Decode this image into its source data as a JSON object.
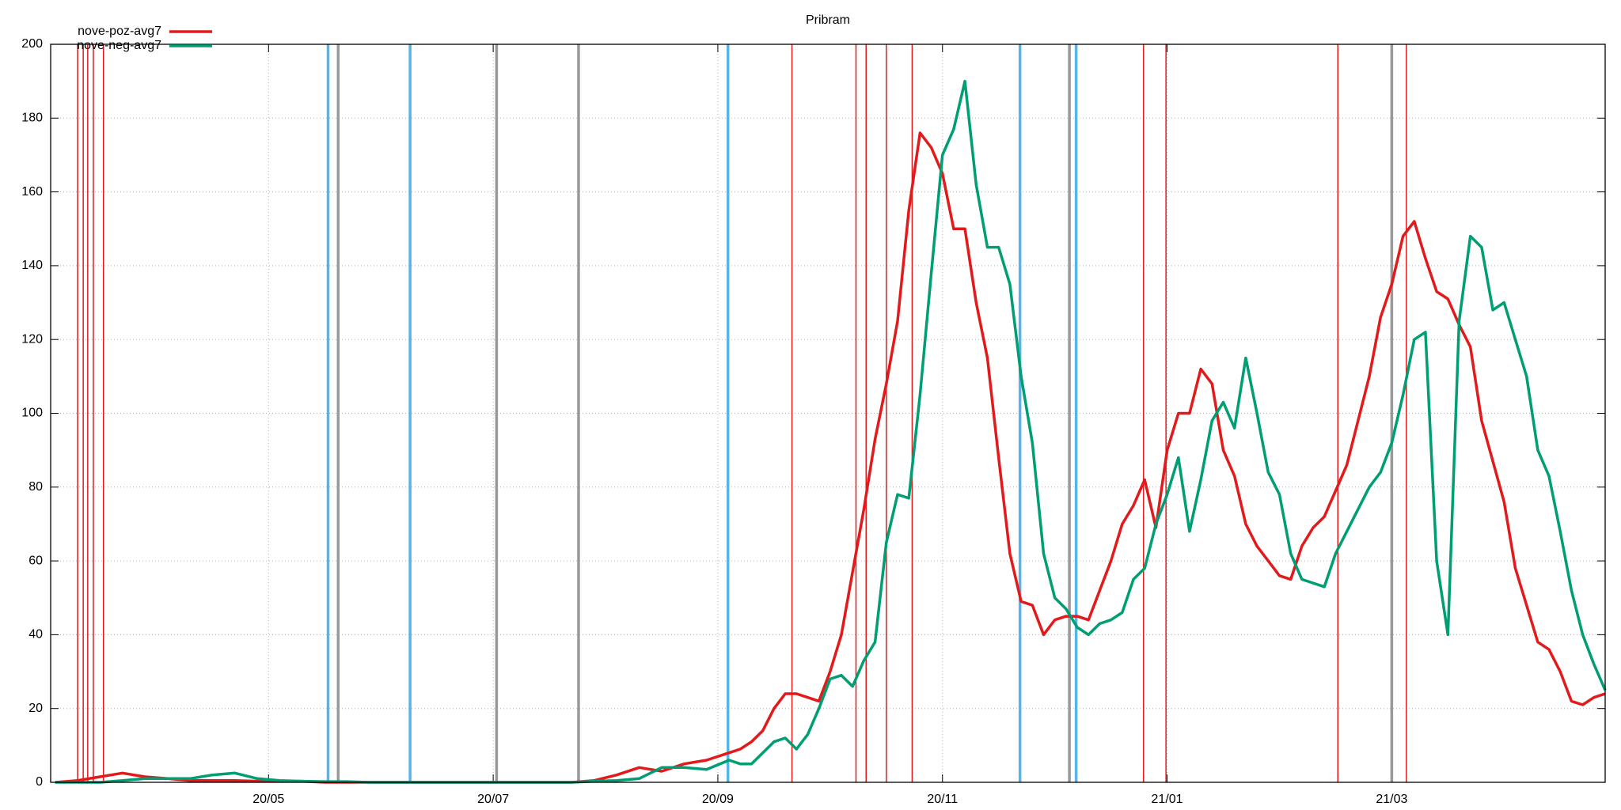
{
  "chart_data": {
    "type": "line",
    "title": "Pribram",
    "x": [
      3.1,
      3.3,
      3.5,
      3.7,
      3.9,
      4.1,
      4.3,
      4.5,
      4.7,
      4.9,
      5.1,
      5.3,
      5.5,
      5.7,
      5.9,
      6.1,
      6.3,
      6.5,
      6.7,
      6.9,
      7.1,
      7.3,
      7.5,
      7.7,
      7.9,
      8.1,
      8.3,
      8.5,
      8.7,
      8.9,
      9.1,
      9.2,
      9.3,
      9.4,
      9.5,
      9.6,
      9.7,
      9.8,
      9.9,
      10.0,
      10.1,
      10.2,
      10.3,
      10.4,
      10.5,
      10.6,
      10.7,
      10.8,
      10.9,
      11.0,
      11.1,
      11.2,
      11.3,
      11.4,
      11.5,
      11.6,
      11.7,
      11.8,
      11.9,
      12.0,
      12.1,
      12.2,
      12.3,
      12.4,
      12.5,
      12.6,
      12.7,
      12.8,
      12.9,
      13.0,
      13.1,
      13.2,
      13.3,
      13.4,
      13.5,
      13.6,
      13.7,
      13.8,
      13.9,
      14.0,
      14.1,
      14.2,
      14.3,
      14.4,
      14.5,
      14.6,
      14.7,
      14.8,
      14.9,
      15.0,
      15.1,
      15.2,
      15.3,
      15.4,
      15.5,
      15.6,
      15.7,
      15.8,
      15.9,
      16.0,
      16.1,
      16.2,
      16.3,
      16.4,
      16.5,
      16.6,
      16.7,
      16.8,
      16.9
    ],
    "series": [
      {
        "name": "nove-poz-avg7",
        "color": "#e31a1c",
        "values": [
          0,
          0.5,
          1.5,
          2.5,
          1.5,
          1,
          0.5,
          0.5,
          0.5,
          0.3,
          0.3,
          0.3,
          0,
          0,
          0,
          0,
          0,
          0,
          0,
          0,
          0,
          0,
          0,
          0,
          0.5,
          2,
          4,
          3,
          5,
          6,
          8,
          9,
          11,
          14,
          20,
          24,
          24,
          23,
          22,
          30,
          40,
          57,
          74,
          93,
          108,
          125,
          155,
          176,
          172,
          165,
          150,
          150,
          130,
          115,
          88,
          62,
          49,
          48,
          40,
          44,
          45,
          45,
          44,
          52,
          60,
          70,
          75,
          82,
          69,
          90,
          100,
          100,
          112,
          108,
          90,
          83,
          70,
          64,
          60,
          56,
          55,
          64,
          69,
          72,
          79,
          86,
          98,
          110,
          126,
          135,
          148,
          152,
          142,
          133,
          131,
          124,
          118,
          98,
          87,
          76,
          58,
          48,
          38,
          36,
          30,
          22,
          21,
          23,
          24
        ]
      },
      {
        "name": "nove-neg-avg7",
        "color": "#009e73",
        "values": [
          0,
          0,
          0,
          0.5,
          1,
          1,
          1,
          2,
          2.5,
          1,
          0.5,
          0.3,
          0.2,
          0.2,
          0,
          0,
          0,
          0,
          0,
          0,
          0,
          0,
          0,
          0,
          0.3,
          0.5,
          1,
          4,
          4,
          3.5,
          6,
          5,
          5,
          8,
          11,
          12,
          9,
          13,
          20,
          28,
          29,
          26,
          33,
          38,
          65,
          78,
          77,
          105,
          138,
          170,
          177,
          190,
          162,
          145,
          145,
          135,
          110,
          92,
          62,
          50,
          47,
          42,
          40,
          43,
          44,
          46,
          55,
          58,
          70,
          78,
          88,
          68,
          82,
          98,
          103,
          96,
          115,
          100,
          84,
          78,
          62,
          55,
          54,
          53,
          62,
          68,
          74,
          80,
          84,
          92,
          105,
          120,
          122,
          60,
          40,
          125,
          148,
          145,
          128,
          130,
          120,
          110,
          90,
          83,
          68,
          52,
          40,
          32,
          25
        ]
      }
    ],
    "vlines": [
      {
        "x": 3.3,
        "color": "#e31a1c"
      },
      {
        "x": 3.35,
        "color": "#e31a1c"
      },
      {
        "x": 3.39,
        "color": "#e31a1c"
      },
      {
        "x": 3.44,
        "color": "#e31a1c"
      },
      {
        "x": 3.53,
        "color": "#e31a1c"
      },
      {
        "x": 9.66,
        "color": "#e31a1c"
      },
      {
        "x": 10.23,
        "color": "#e31a1c"
      },
      {
        "x": 10.32,
        "color": "#e31a1c"
      },
      {
        "x": 10.5,
        "color": "#e31a1c"
      },
      {
        "x": 10.73,
        "color": "#e31a1c"
      },
      {
        "x": 12.79,
        "color": "#e31a1c"
      },
      {
        "x": 12.99,
        "color": "#e31a1c"
      },
      {
        "x": 14.52,
        "color": "#e31a1c"
      },
      {
        "x": 15.13,
        "color": "#e31a1c"
      },
      {
        "x": 5.53,
        "color": "#56b4e9"
      },
      {
        "x": 6.26,
        "color": "#56b4e9"
      },
      {
        "x": 9.09,
        "color": "#56b4e9"
      },
      {
        "x": 11.69,
        "color": "#56b4e9"
      },
      {
        "x": 12.19,
        "color": "#56b4e9"
      },
      {
        "x": 5.62,
        "color": "#999999"
      },
      {
        "x": 7.03,
        "color": "#999999"
      },
      {
        "x": 7.76,
        "color": "#999999"
      },
      {
        "x": 12.13,
        "color": "#999999"
      },
      {
        "x": 15.0,
        "color": "#999999"
      }
    ],
    "xlim": [
      3.06,
      16.9
    ],
    "xticks": [
      {
        "value": 5,
        "label": "20/05"
      },
      {
        "value": 7,
        "label": "20/07"
      },
      {
        "value": 9,
        "label": "20/09"
      },
      {
        "value": 11,
        "label": "20/11"
      },
      {
        "value": 13,
        "label": "21/01"
      },
      {
        "value": 15,
        "label": "21/03"
      }
    ],
    "ylim": [
      0,
      200
    ],
    "yticks": [
      0,
      20,
      40,
      60,
      80,
      100,
      120,
      140,
      160,
      180,
      200
    ],
    "grid": true,
    "legend": "top-left"
  }
}
